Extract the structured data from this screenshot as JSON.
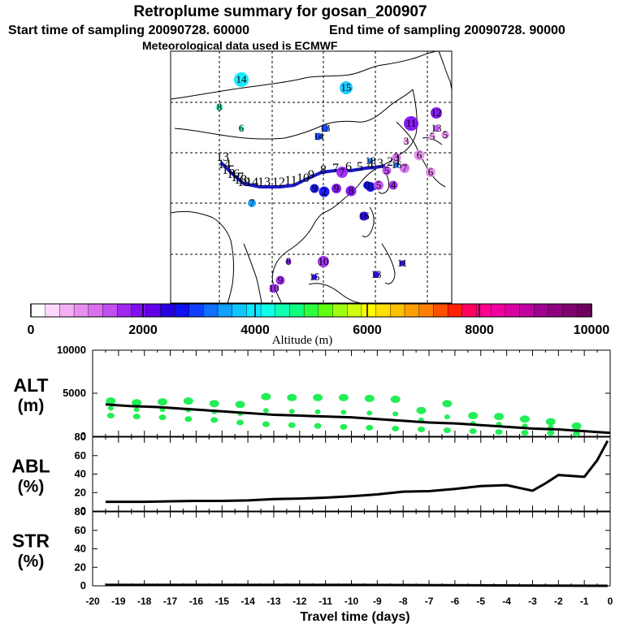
{
  "header": {
    "title": "Retroplume summary for gosan_200907",
    "start_label": "Start time of sampling 20090728. 60000",
    "end_label": "End time of sampling 20090728. 90000",
    "met_label": "Meteorological data used is ECMWF"
  },
  "colorbar": {
    "min": 0,
    "max": 10000,
    "tick_labels": [
      "0",
      "2000",
      "4000",
      "6000",
      "8000",
      "10000"
    ],
    "title": "Altitude (m)",
    "colors": [
      "#ffffff",
      "#ffd8ff",
      "#f4b0f4",
      "#e890f0",
      "#d870f0",
      "#c050f0",
      "#a028f0",
      "#8010f0",
      "#6000e8",
      "#2800e0",
      "#1010f0",
      "#1040ff",
      "#1070ff",
      "#10a0ff",
      "#10c8ff",
      "#10e8ff",
      "#10ffe8",
      "#10ffb0",
      "#10ff80",
      "#30ff40",
      "#60ff10",
      "#a0ff10",
      "#d0ff10",
      "#ffff00",
      "#ffe000",
      "#ffc000",
      "#ffa000",
      "#ff8000",
      "#ff5000",
      "#ff2000",
      "#ff0060",
      "#ff0090",
      "#f000a0",
      "#d800a0",
      "#c000a0",
      "#a00090",
      "#900080",
      "#800070",
      "#700060"
    ]
  },
  "map_labels": [
    {
      "text": "14",
      "color": "#10e8ff",
      "size": 16
    },
    {
      "text": "15",
      "color": "#10c8ff",
      "size": 14
    },
    {
      "text": "8",
      "color": "#10ffb0",
      "size": 6
    },
    {
      "text": "6",
      "color": "#10ffb0",
      "size": 4
    },
    {
      "text": "12",
      "color": "#8010f0",
      "size": 12
    },
    {
      "text": "11",
      "color": "#8010f0",
      "size": 16
    },
    {
      "text": "13",
      "color": "#c050f0",
      "size": 6
    },
    {
      "text": "5",
      "color": "#e890f0",
      "size": 8
    },
    {
      "text": "13",
      "color": "#1040ff",
      "size": 7
    },
    {
      "text": "14",
      "color": "#1040ff",
      "size": 7
    },
    {
      "text": "3",
      "color": "#f4b0f4",
      "size": 6
    },
    {
      "text": "5",
      "color": "#f4b0f4",
      "size": 7
    },
    {
      "text": "6",
      "color": "#e890f0",
      "size": 11
    },
    {
      "text": "7",
      "color": "#d870f0",
      "size": 10
    },
    {
      "text": "6",
      "color": "#e890f0",
      "size": 10
    },
    {
      "text": "18",
      "color": "#1070ff",
      "size": 5
    },
    {
      "text": "16",
      "color": "#1070ff",
      "size": 5
    },
    {
      "text": "7",
      "color": "#10a0ff",
      "size": 8
    },
    {
      "text": "2",
      "color": "#1010f0",
      "size": 11
    },
    {
      "text": "9",
      "color": "#1010f0",
      "size": 9
    },
    {
      "text": "9",
      "color": "#8010f0",
      "size": 10
    },
    {
      "text": "8",
      "color": "#8010f0",
      "size": 11
    },
    {
      "text": "7",
      "color": "#a028f0",
      "size": 12
    },
    {
      "text": "8",
      "color": "#1010f0",
      "size": 10
    },
    {
      "text": "5",
      "color": "#c050f0",
      "size": 10
    },
    {
      "text": "0",
      "color": "#1010f0",
      "size": 8
    },
    {
      "text": "4",
      "color": "#a028f0",
      "size": 9
    },
    {
      "text": "3",
      "color": "#d870f0",
      "size": 9
    },
    {
      "text": "5",
      "color": "#c050f0",
      "size": 9
    },
    {
      "text": "16",
      "color": "#2800e0",
      "size": 9
    },
    {
      "text": "8",
      "color": "#8010f0",
      "size": 5
    },
    {
      "text": "10",
      "color": "#a028f0",
      "size": 12
    },
    {
      "text": "9",
      "color": "#a028f0",
      "size": 9
    },
    {
      "text": "10",
      "color": "#a028f0",
      "size": 9
    },
    {
      "text": "15",
      "color": "#2800e0",
      "size": 5
    },
    {
      "text": "13",
      "color": "#2800e0",
      "size": 6
    },
    {
      "text": "11",
      "color": "#2800e0",
      "size": 5
    }
  ],
  "track_labels": [
    "13",
    "14",
    "15",
    "16",
    "17",
    "18",
    "19",
    "14",
    "13",
    "12",
    "11",
    "10",
    "9",
    "8",
    "7",
    "6",
    "5",
    "4",
    "3",
    "2",
    "1"
  ],
  "chart_data": [
    {
      "type": "scatter",
      "name": "ALT",
      "ylabel_line1": "ALT",
      "ylabel_line2": "(m)",
      "ylim": [
        0,
        10000
      ],
      "yticks": [
        0,
        5000,
        10000
      ],
      "ytick_labels": [
        "0",
        "5000",
        "10000"
      ],
      "x": [
        -19.5,
        -19.0,
        -18.5,
        -18.0,
        -17.5,
        -17.0,
        -16.5,
        -16.0,
        -15.5,
        -15.0,
        -14.5,
        -14.0,
        -13.5,
        -13.0,
        -12.5,
        -12.0,
        -11.5,
        -11.0,
        -10.5,
        -10.0,
        -9.5,
        -9.0,
        -8.5,
        -8.0,
        -7.5,
        -7.0,
        -6.5,
        -6.0,
        -5.5,
        -5.0,
        -4.5,
        -4.0,
        -3.5,
        -3.0,
        -2.5,
        -2.0,
        -1.5,
        -1.0,
        -0.5,
        0.0
      ],
      "mean_altitude": [
        3700,
        3600,
        3500,
        3450,
        3400,
        3300,
        3200,
        3100,
        3000,
        2900,
        2800,
        2700,
        2600,
        2500,
        2450,
        2400,
        2350,
        2300,
        2250,
        2200,
        2100,
        2000,
        1900,
        1800,
        1700,
        1600,
        1550,
        1500,
        1400,
        1300,
        1200,
        1100,
        1000,
        900,
        850,
        800,
        700,
        600,
        500,
        400
      ],
      "cluster_x": [
        -19.3,
        -18.3,
        -17.3,
        -16.3,
        -15.3,
        -14.3,
        -13.3,
        -12.3,
        -11.3,
        -10.3,
        -9.3,
        -8.3,
        -7.3,
        -6.3,
        -5.3,
        -4.3,
        -3.3,
        -2.3,
        -1.3
      ],
      "cluster_alt": [
        4100,
        3900,
        4000,
        4100,
        3800,
        3700,
        4600,
        4500,
        4500,
        4500,
        4400,
        4300,
        3000,
        3800,
        2400,
        2300,
        2000,
        1700,
        1200
      ],
      "cluster_low": [
        2400,
        2300,
        2200,
        2000,
        1900,
        1600,
        1400,
        1300,
        1200,
        1100,
        1000,
        900,
        800,
        700,
        600,
        500,
        400,
        400,
        300
      ],
      "colors": {
        "cluster": "#22ee55",
        "mean": "#000000"
      }
    },
    {
      "type": "line",
      "name": "ABL",
      "ylabel_line1": "ABL",
      "ylabel_line2": "(%)",
      "ylim": [
        0,
        80
      ],
      "yticks": [
        0,
        20,
        40,
        60,
        80
      ],
      "ytick_labels": [
        "0",
        "20",
        "40",
        "60",
        "80"
      ],
      "x": [
        -19.5,
        -19.0,
        -18.0,
        -17.0,
        -16.0,
        -15.0,
        -14.0,
        -13.0,
        -12.0,
        -11.0,
        -10.0,
        -9.0,
        -8.0,
        -7.0,
        -6.0,
        -5.0,
        -4.0,
        -3.5,
        -3.0,
        -2.5,
        -2.0,
        -1.5,
        -1.0,
        -0.5,
        -0.1
      ],
      "values": [
        10,
        10,
        10,
        10.5,
        11,
        11,
        11.5,
        13,
        13.5,
        14.5,
        16,
        18,
        21,
        21.5,
        24,
        27,
        28,
        25,
        22,
        30,
        39,
        38,
        37,
        55,
        76
      ]
    },
    {
      "type": "line",
      "name": "STR",
      "ylabel_line1": "STR",
      "ylabel_line2": "(%)",
      "ylim": [
        0,
        80
      ],
      "yticks": [
        0,
        20,
        40,
        60,
        80
      ],
      "ytick_labels": [
        "0",
        "20",
        "40",
        "60",
        "80"
      ],
      "x": [
        -19.5,
        -15.0,
        -10.0,
        -5.0,
        -0.1
      ],
      "values": [
        1,
        1,
        1,
        0.5,
        0
      ]
    }
  ],
  "xaxis": {
    "min": -20,
    "max": 0,
    "tick_labels": [
      "-20",
      "-19",
      "-18",
      "-17",
      "-16",
      "-15",
      "-14",
      "-13",
      "-12",
      "-11",
      "-10",
      "-9",
      "-8",
      "-7",
      "-6",
      "-5",
      "-4",
      "-3",
      "-2",
      "-1",
      "0"
    ],
    "label": "Travel time (days)"
  }
}
